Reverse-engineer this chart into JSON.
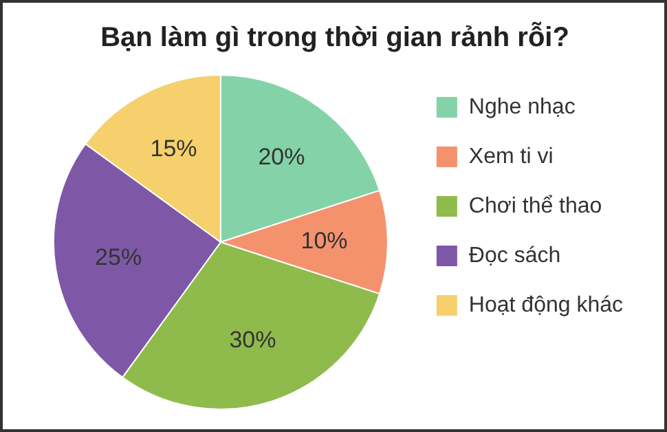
{
  "chart_data": {
    "type": "pie",
    "title": "Bạn làm gì trong thời gian rảnh rỗi?",
    "categories": [
      "Nghe nhạc",
      "Xem ti vi",
      "Chơi thể thao",
      "Đọc sách",
      "Hoạt động khác"
    ],
    "values": [
      20,
      10,
      30,
      25,
      15
    ],
    "colors": [
      "#84d3a8",
      "#f4926e",
      "#8fbb4c",
      "#7e58a6",
      "#f5d06c"
    ],
    "value_labels": [
      "20%",
      "10%",
      "30%",
      "25%",
      "15%"
    ],
    "legend": "right"
  }
}
